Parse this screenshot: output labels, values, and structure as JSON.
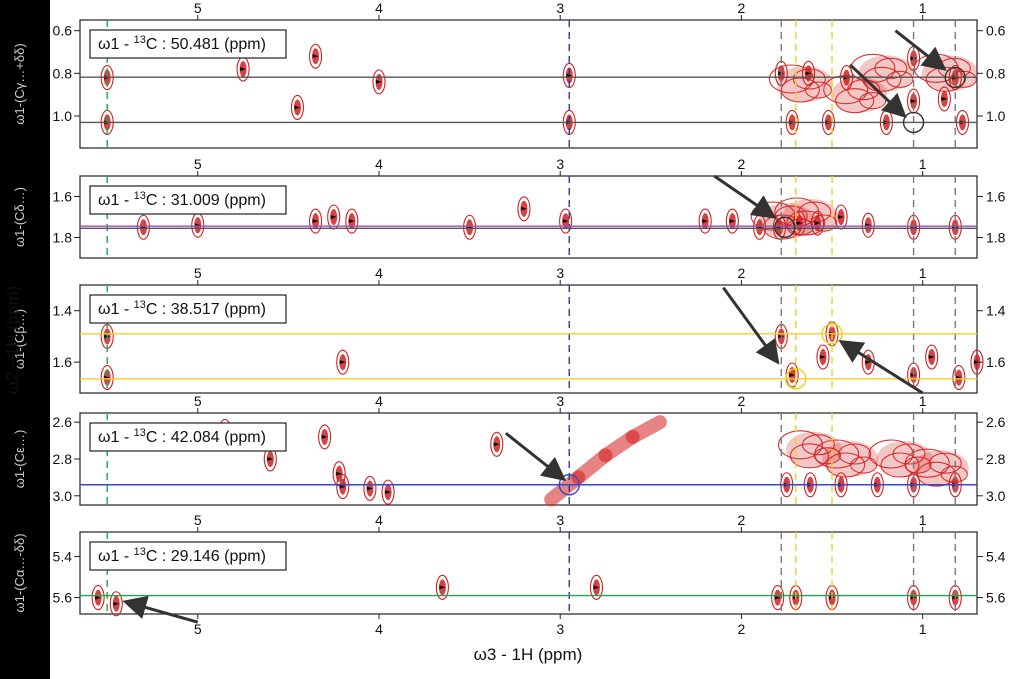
{
  "figure": {
    "shared_ylabel": "ω2 - 1H (ppm)",
    "shared_xlabel": "ω3 - 1H (ppm)"
  },
  "colors": {
    "contour": "#d41f1f",
    "grid": "#555555",
    "guide_green": "#19a84b",
    "guide_navy": "#2a3aa0",
    "guide_gray": "#7a7a7a",
    "guide_yellow": "#f0d020",
    "hline_purple": "#9a4fb8",
    "hline_blue": "#3a45c8",
    "arrow": "#333333"
  },
  "chart_data": [
    {
      "type": "contour",
      "label_prefix": "ω1 - ",
      "label_nucleus": "13C",
      "label_value": ": 50.481",
      "label_unit": "(ppm)",
      "ylabel": "ω1-(Cγ…+δδ)",
      "xlim": [
        5.65,
        0.7
      ],
      "ylim": [
        1.15,
        0.55
      ],
      "xticks": [
        5,
        4,
        3,
        2,
        1
      ],
      "yticks": [
        0.6,
        0.8,
        1.0
      ],
      "ytick_labels": [
        "0.6",
        "0.8",
        "1.0"
      ],
      "hlines": [
        {
          "y": 0.818,
          "color": "#555555"
        },
        {
          "y": 1.03,
          "color": "#555555"
        }
      ],
      "blobs": [
        [
          5.5,
          0.82
        ],
        [
          5.5,
          1.03
        ],
        [
          4.75,
          0.78
        ],
        [
          4.35,
          0.72
        ],
        [
          4.45,
          0.96
        ],
        [
          4.0,
          0.84
        ],
        [
          2.95,
          0.81
        ],
        [
          2.95,
          1.03
        ],
        [
          1.78,
          0.8
        ],
        [
          1.63,
          0.8
        ],
        [
          1.42,
          0.82
        ],
        [
          1.2,
          1.03
        ],
        [
          1.52,
          1.03
        ],
        [
          1.72,
          1.03
        ],
        [
          1.05,
          0.73
        ],
        [
          1.05,
          0.93
        ],
        [
          0.88,
          0.92
        ],
        [
          0.82,
          0.82
        ],
        [
          0.78,
          1.03
        ]
      ],
      "clusters": [
        [
          0.85,
          0.8
        ],
        [
          1.35,
          0.9
        ],
        [
          1.65,
          0.85
        ],
        [
          1.2,
          0.8
        ]
      ],
      "circles": [
        [
          0.82,
          0.82,
          "#333333"
        ],
        [
          1.05,
          1.03,
          "#333333"
        ]
      ],
      "arrows": [
        [
          1.15,
          0.6,
          0.88,
          0.78
        ],
        [
          1.4,
          0.76,
          1.1,
          1.0
        ]
      ]
    },
    {
      "type": "contour",
      "label_prefix": "ω1 - ",
      "label_nucleus": "13C",
      "label_value": ": 31.009",
      "label_unit": "(ppm)",
      "ylabel": "ω1-(Cδ…)",
      "xlim": [
        5.65,
        0.7
      ],
      "ylim": [
        1.9,
        1.5
      ],
      "xticks": [
        5,
        4,
        3,
        2,
        1
      ],
      "yticks": [
        1.6,
        1.8
      ],
      "ytick_labels": [
        "1.6",
        "1.8"
      ],
      "hlines": [
        {
          "y": 1.745,
          "color": "#9a4fb8"
        },
        {
          "y": 1.755,
          "color": "#555555"
        }
      ],
      "blobs": [
        [
          5.3,
          1.75
        ],
        [
          5.0,
          1.74
        ],
        [
          4.35,
          1.72
        ],
        [
          4.25,
          1.7
        ],
        [
          4.15,
          1.72
        ],
        [
          3.5,
          1.75
        ],
        [
          3.2,
          1.66
        ],
        [
          2.97,
          1.72
        ],
        [
          2.2,
          1.72
        ],
        [
          2.05,
          1.72
        ],
        [
          1.9,
          1.75
        ],
        [
          1.79,
          1.75
        ],
        [
          1.68,
          1.73
        ],
        [
          1.58,
          1.73
        ],
        [
          1.45,
          1.7
        ],
        [
          1.3,
          1.74
        ],
        [
          1.05,
          1.75
        ],
        [
          0.82,
          1.75
        ]
      ],
      "clusters": [
        [
          1.62,
          1.7
        ],
        [
          1.75,
          1.72
        ]
      ],
      "circles": [
        [
          1.76,
          1.75,
          "#333333"
        ]
      ],
      "arrows": [
        [
          2.15,
          1.5,
          1.82,
          1.7
        ]
      ]
    },
    {
      "type": "contour",
      "label_prefix": "ω1 - ",
      "label_nucleus": "13C",
      "label_value": ": 38.517",
      "label_unit": "(ppm)",
      "ylabel": "ω1-(Cβ…)",
      "xlim": [
        5.65,
        0.7
      ],
      "ylim": [
        1.72,
        1.3
      ],
      "xticks": [
        5,
        4,
        3,
        2,
        1
      ],
      "yticks": [
        1.4,
        1.6
      ],
      "ytick_labels": [
        "1.4",
        "1.6"
      ],
      "hlines": [
        {
          "y": 1.49,
          "color": "#f0d020"
        },
        {
          "y": 1.665,
          "color": "#f0d020"
        }
      ],
      "blobs": [
        [
          5.5,
          1.5
        ],
        [
          5.5,
          1.66
        ],
        [
          4.2,
          1.6
        ],
        [
          1.78,
          1.5
        ],
        [
          1.72,
          1.65
        ],
        [
          1.55,
          1.58
        ],
        [
          1.5,
          1.49
        ],
        [
          1.3,
          1.6
        ],
        [
          1.05,
          1.65
        ],
        [
          0.95,
          1.58
        ],
        [
          0.8,
          1.66
        ],
        [
          0.7,
          1.6
        ]
      ],
      "clusters": [],
      "circles": [
        [
          1.7,
          1.665,
          "#f0d020"
        ],
        [
          1.5,
          1.49,
          "#f0d020"
        ]
      ],
      "arrows": [
        [
          2.1,
          1.31,
          1.8,
          1.6
        ],
        [
          1.0,
          1.72,
          1.45,
          1.52
        ]
      ]
    },
    {
      "type": "contour",
      "label_prefix": "ω1 - ",
      "label_nucleus": "13C",
      "label_value": ": 42.084",
      "label_unit": "(ppm)",
      "ylabel": "ω1-(Cε…)",
      "xlim": [
        5.65,
        0.7
      ],
      "ylim": [
        3.05,
        2.55
      ],
      "xticks": [
        5,
        4,
        3,
        2,
        1
      ],
      "yticks": [
        2.6,
        2.8,
        3.0
      ],
      "ytick_labels": [
        "2.6",
        "2.8",
        "3.0"
      ],
      "hlines": [
        {
          "y": 2.94,
          "color": "#3a45c8"
        }
      ],
      "blobs": [
        [
          4.85,
          2.65
        ],
        [
          4.6,
          2.8
        ],
        [
          4.3,
          2.68
        ],
        [
          4.22,
          2.88
        ],
        [
          4.2,
          2.95
        ],
        [
          4.05,
          2.96
        ],
        [
          3.95,
          2.98
        ],
        [
          3.35,
          2.72
        ],
        [
          1.75,
          2.94
        ],
        [
          1.62,
          2.94
        ],
        [
          1.45,
          2.94
        ],
        [
          1.25,
          2.94
        ],
        [
          1.05,
          2.94
        ],
        [
          0.82,
          2.94
        ]
      ],
      "clusters": [
        [
          1.4,
          2.8
        ],
        [
          1.1,
          2.8
        ],
        [
          1.6,
          2.75
        ],
        [
          0.9,
          2.85
        ]
      ],
      "diagonal": [
        [
          3.05,
          3.02
        ],
        [
          2.9,
          2.9
        ],
        [
          2.75,
          2.78
        ],
        [
          2.6,
          2.68
        ],
        [
          2.45,
          2.6
        ]
      ],
      "circles": [
        [
          2.95,
          2.94,
          "#3a45c8"
        ]
      ],
      "arrows": [
        [
          3.3,
          2.66,
          2.98,
          2.91
        ]
      ]
    },
    {
      "type": "contour",
      "label_prefix": "ω1 - ",
      "label_nucleus": "13C",
      "label_value": ": 29.146",
      "label_unit": "(ppm)",
      "ylabel": "ω1-(Cα…-δδ)",
      "xlim": [
        5.65,
        0.7
      ],
      "ylim": [
        5.68,
        5.28
      ],
      "xticks": [
        5,
        4,
        3,
        2,
        1
      ],
      "yticks": [
        5.4,
        5.6
      ],
      "ytick_labels": [
        "5.4",
        "5.6"
      ],
      "hlines": [
        {
          "y": 5.59,
          "color": "#19a84b"
        }
      ],
      "blobs": [
        [
          5.55,
          5.6
        ],
        [
          5.45,
          5.63
        ],
        [
          3.65,
          5.55
        ],
        [
          2.8,
          5.55
        ],
        [
          1.8,
          5.6
        ],
        [
          1.7,
          5.6
        ],
        [
          1.5,
          5.6
        ],
        [
          1.05,
          5.6
        ],
        [
          0.82,
          5.6
        ]
      ],
      "clusters": [],
      "circles": [],
      "arrows": [
        [
          5.0,
          5.72,
          5.4,
          5.62
        ]
      ]
    }
  ]
}
